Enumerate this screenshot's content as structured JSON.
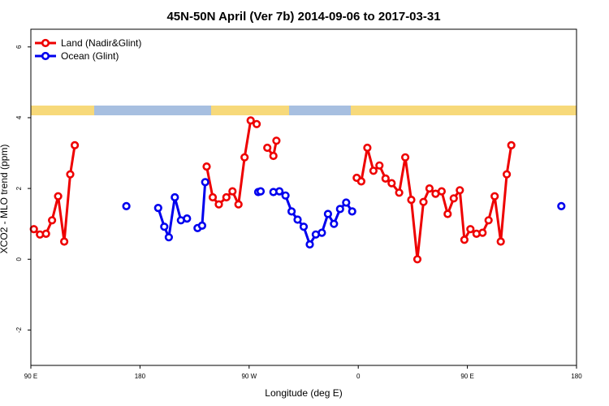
{
  "chart_data": {
    "type": "line",
    "title": "45N-50N April (Ver 7b)   2014-09-06 to 2017-03-31",
    "xlabel": "Longitude (deg E)",
    "ylabel": "XCO2 - MLO trend (ppm)",
    "xlim": [
      90,
      270
    ],
    "ylim": [
      -3.0,
      6.5
    ],
    "x_axis_ticks": [
      {
        "value": 90,
        "label": "90 E"
      },
      {
        "value": 126,
        "label": "180"
      },
      {
        "value": 162,
        "label": "90 W"
      },
      {
        "value": 198,
        "label": "0"
      },
      {
        "value": 234,
        "label": "90 E"
      },
      {
        "value": 270,
        "label": "180"
      }
    ],
    "y_axis_ticks": [
      -2,
      0,
      2,
      4,
      6
    ],
    "legend_position": "top-left",
    "grid": false,
    "series": [
      {
        "name": "Land (Nadir&Glint)",
        "color": "#ee0000",
        "segments": [
          [
            [
              91.0,
              0.85
            ],
            [
              93.0,
              0.7
            ],
            [
              95.0,
              0.72
            ],
            [
              97.0,
              1.1
            ],
            [
              99.0,
              1.78
            ],
            [
              101.0,
              0.5
            ],
            [
              103.0,
              2.4
            ],
            [
              104.5,
              3.22
            ]
          ],
          [
            [
              148.0,
              2.62
            ],
            [
              150.0,
              1.75
            ],
            [
              152.0,
              1.55
            ],
            [
              154.5,
              1.75
            ],
            [
              156.5,
              1.92
            ],
            [
              158.5,
              1.55
            ],
            [
              160.5,
              2.88
            ],
            [
              162.5,
              3.92
            ],
            [
              164.5,
              3.82
            ]
          ],
          [
            [
              168.0,
              3.15
            ],
            [
              170.0,
              2.92
            ],
            [
              171.0,
              3.35
            ]
          ],
          [
            [
              197.5,
              2.3
            ],
            [
              199.0,
              2.2
            ],
            [
              201.0,
              3.15
            ],
            [
              203.0,
              2.5
            ],
            [
              205.0,
              2.65
            ],
            [
              207.0,
              2.28
            ],
            [
              209.0,
              2.15
            ],
            [
              211.5,
              1.88
            ],
            [
              213.5,
              2.88
            ],
            [
              215.5,
              1.68
            ],
            [
              217.5,
              0.0
            ],
            [
              219.5,
              1.62
            ],
            [
              221.5,
              2.0
            ],
            [
              223.5,
              1.85
            ],
            [
              225.5,
              1.92
            ],
            [
              227.5,
              1.28
            ],
            [
              229.5,
              1.72
            ],
            [
              231.5,
              1.95
            ],
            [
              233.0,
              0.55
            ],
            [
              235.0,
              0.85
            ],
            [
              237.0,
              0.72
            ],
            [
              239.0,
              0.75
            ],
            [
              241.0,
              1.1
            ],
            [
              243.0,
              1.78
            ],
            [
              245.0,
              0.5
            ],
            [
              247.0,
              2.4
            ],
            [
              248.5,
              3.22
            ]
          ]
        ]
      },
      {
        "name": "Ocean (Glint)",
        "color": "#0000ee",
        "segments": [
          [
            [
              121.5,
              1.5
            ]
          ],
          [
            [
              132.0,
              1.45
            ],
            [
              134.0,
              0.92
            ],
            [
              135.5,
              0.62
            ],
            [
              137.5,
              1.75
            ],
            [
              139.5,
              1.1
            ],
            [
              141.5,
              1.15
            ]
          ],
          [
            [
              145.0,
              0.88
            ],
            [
              146.5,
              0.95
            ],
            [
              147.5,
              2.18
            ]
          ],
          [
            [
              165.0,
              1.9
            ],
            [
              165.8,
              1.92
            ]
          ],
          [
            [
              170.0,
              1.9
            ],
            [
              172.0,
              1.92
            ],
            [
              174.0,
              1.8
            ],
            [
              176.0,
              1.35
            ],
            [
              178.0,
              1.12
            ],
            [
              180.0,
              0.92
            ],
            [
              182.0,
              0.42
            ],
            [
              184.0,
              0.7
            ],
            [
              186.0,
              0.75
            ],
            [
              188.0,
              1.28
            ],
            [
              190.0,
              1.0
            ],
            [
              192.0,
              1.42
            ],
            [
              194.0,
              1.6
            ],
            [
              196.0,
              1.35
            ]
          ],
          [
            [
              265.0,
              1.5
            ]
          ]
        ]
      }
    ]
  }
}
